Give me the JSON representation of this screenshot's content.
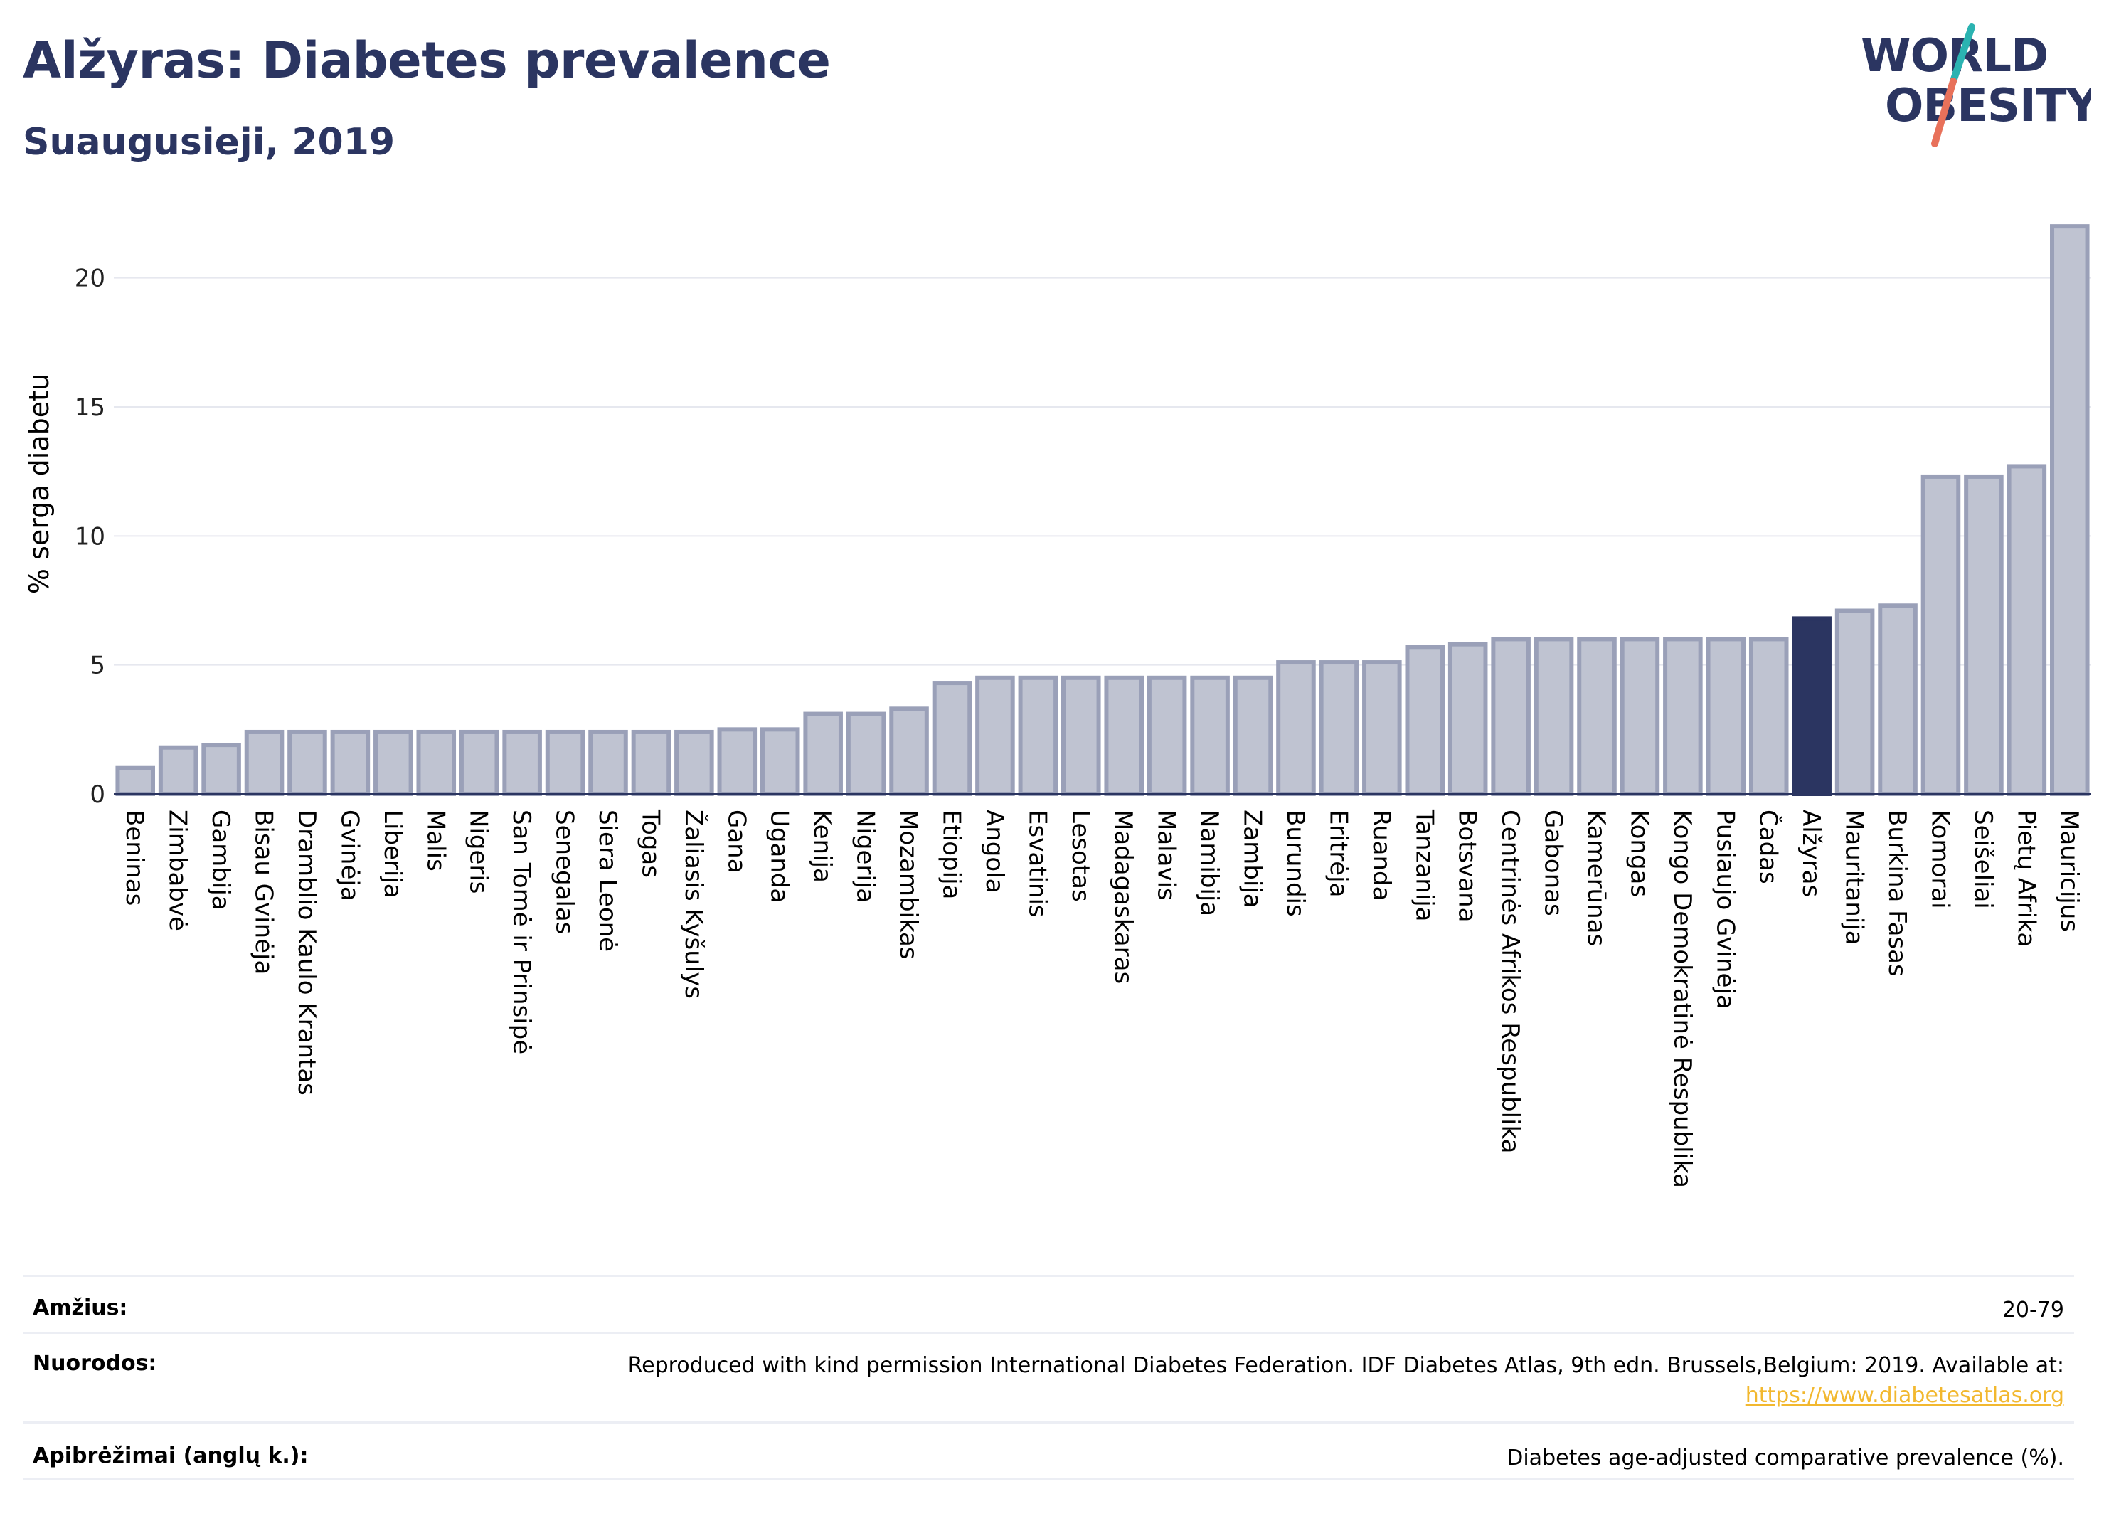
{
  "header": {
    "title": "Alžyras: Diabetes prevalence",
    "subtitle": "Suaugusieji, 2019"
  },
  "logo": {
    "line1": "WORLD",
    "line2": "OBESITY",
    "colors": {
      "text": "#2b3561",
      "slash_top": "#2bb3b1",
      "slash_bottom": "#e8715a"
    }
  },
  "colors": {
    "bar_fill": "#bfc3d1",
    "bar_stroke": "#9aa0b8",
    "highlight_fill": "#2b3561",
    "grid": "#e6e8ef",
    "text_dark": "#2b3561"
  },
  "chart_data": {
    "type": "bar",
    "title": "Alžyras: Diabetes prevalence",
    "subtitle": "Suaugusieji, 2019",
    "xlabel": "",
    "ylabel": "% serga diabetu",
    "ylim": [
      0,
      22.5
    ],
    "yticks": [
      0,
      5,
      10,
      15,
      20
    ],
    "grid": true,
    "highlight": "Alžyras",
    "categories": [
      "Beninas",
      "Zimbabvė",
      "Gambija",
      "Bisau Gvinėja",
      "Dramblio Kaulo Krantas",
      "Gvinėja",
      "Liberija",
      "Malis",
      "Nigeris",
      "San Tomė ir Prinsipė",
      "Senegalas",
      "Siera Leonė",
      "Togas",
      "Žaliasis Kyšulys",
      "Gana",
      "Uganda",
      "Kenija",
      "Nigerija",
      "Mozambikas",
      "Etiopija",
      "Angola",
      "Esvatinis",
      "Lesotas",
      "Madagaskaras",
      "Malavis",
      "Namibija",
      "Zambija",
      "Burundis",
      "Eritrėja",
      "Ruanda",
      "Tanzanija",
      "Botsvana",
      "Centrinės Afrikos Respublika",
      "Gabonas",
      "Kamerūnas",
      "Kongas",
      "Kongo Demokratinė Respublika",
      "Pusiaujo Gvinėja",
      "Čadas",
      "Alžyras",
      "Mauritanija",
      "Burkina Fasas",
      "Komorai",
      "Seišeliai",
      "Pietų Afrika",
      "Mauricijus"
    ],
    "values": [
      1.0,
      1.8,
      1.9,
      2.4,
      2.4,
      2.4,
      2.4,
      2.4,
      2.4,
      2.4,
      2.4,
      2.4,
      2.4,
      2.4,
      2.5,
      2.5,
      3.1,
      3.1,
      3.3,
      4.3,
      4.5,
      4.5,
      4.5,
      4.5,
      4.5,
      4.5,
      4.5,
      5.1,
      5.1,
      5.1,
      5.7,
      5.8,
      6.0,
      6.0,
      6.0,
      6.0,
      6.0,
      6.0,
      6.0,
      6.8,
      7.1,
      7.3,
      12.3,
      12.3,
      12.7,
      22.0
    ]
  },
  "info": {
    "age_label": "Amžius:",
    "age_value": "20-79",
    "ref_label": "Nuorodos:",
    "ref_text": "Reproduced with kind permission International Diabetes Federation. IDF Diabetes Atlas, 9th edn. Brussels,Belgium: 2019. Available at:",
    "ref_link": "https://www.diabetesatlas.org",
    "def_label": "Apibrėžimai (anglų k.):",
    "def_value": "Diabetes age-adjusted comparative prevalence (%)."
  }
}
